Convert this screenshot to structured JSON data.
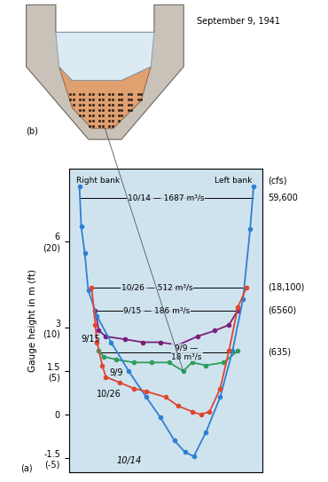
{
  "chart_data": {
    "type": "line",
    "y_label": "Gauge height in m (ft)",
    "xlim": [
      -5,
      105
    ],
    "ylim": [
      -2,
      8.5
    ],
    "yticks": [
      {
        "value": -1.5,
        "label": "-1.5\n(-5)"
      },
      0,
      {
        "value": 1.5,
        "label": "1.5\n(5)"
      },
      {
        "value": 3,
        "label": "3\n(10)"
      },
      {
        "value": 6,
        "label": "6\n(20)"
      }
    ],
    "grid": false,
    "tick_labels": "y",
    "annotations": [
      "Right bank",
      "Left bank",
      "(cfs)",
      "(a)"
    ],
    "series": [
      {
        "name": "9/9",
        "color": "#2e9e5b",
        "marker": "o",
        "line_style": "solid",
        "x": [
          12,
          15,
          22,
          32,
          42,
          52,
          60,
          65,
          73,
          83,
          91
        ],
        "values": [
          2.2,
          2.0,
          1.9,
          1.8,
          1.8,
          1.8,
          1.5,
          1.8,
          1.7,
          1.8,
          2.2
        ],
        "stage": 2.15,
        "stage_label": "9/9 —\n18 m³/s",
        "cfs_label": "(635)"
      },
      {
        "name": "9/15",
        "color": "#7b1e7a",
        "marker": "o",
        "line_style": "solid",
        "x": [
          10,
          12,
          16,
          27,
          37,
          47,
          57,
          68,
          78,
          86,
          91
        ],
        "values": [
          3.6,
          2.9,
          2.7,
          2.6,
          2.5,
          2.5,
          2.4,
          2.7,
          2.9,
          3.1,
          3.6
        ],
        "stage": 3.6,
        "stage_label": "9/15 — 186 m³/s",
        "cfs_label": "(6560)"
      },
      {
        "name": "10/14",
        "color": "#2f7fd1",
        "marker": "o",
        "line_style": "solid",
        "x": [
          1,
          2,
          4,
          6,
          11,
          19,
          29,
          39,
          47,
          55,
          61,
          66,
          73,
          81,
          88,
          94,
          98,
          100
        ],
        "values": [
          7.9,
          6.5,
          5.6,
          4.3,
          3.4,
          2.5,
          1.5,
          0.6,
          -0.1,
          -0.9,
          -1.3,
          -1.45,
          -0.6,
          0.6,
          2.2,
          4.0,
          6.4,
          7.9
        ],
        "stage": 7.5,
        "stage_label": "10/14 — 1687 m³/s",
        "cfs_label": "59,600"
      },
      {
        "name": "10/26",
        "color": "#e0452e",
        "marker": "o",
        "line_style": "solid",
        "x": [
          8,
          10,
          11,
          14,
          16,
          24,
          32,
          39,
          50,
          57,
          65,
          70,
          75,
          81,
          86,
          91,
          96
        ],
        "values": [
          4.4,
          3.1,
          2.5,
          1.7,
          1.3,
          1.1,
          0.9,
          0.8,
          0.6,
          0.3,
          0.1,
          0.0,
          0.1,
          0.9,
          2.2,
          3.7,
          4.4
        ],
        "stage": 4.4,
        "stage_label": "10/26 — 512 m³/s",
        "cfs_label": "(18,100)"
      }
    ]
  },
  "inset": {
    "label": "(b)",
    "caption": "September 9, 1941"
  }
}
